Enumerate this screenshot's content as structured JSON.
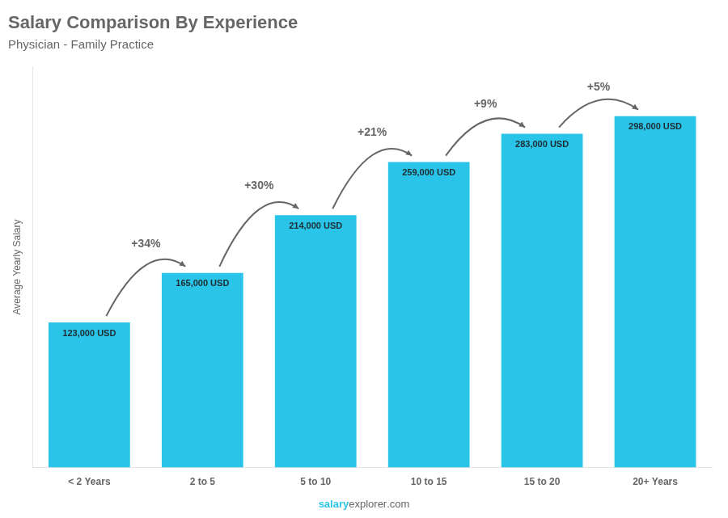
{
  "chart_data": {
    "type": "bar",
    "title": "Salary Comparison By Experience",
    "subtitle": "Physician - Family Practice",
    "categories": [
      "< 2 Years",
      "2 to 5",
      "5 to 10",
      "10 to 15",
      "15 to 20",
      "20+ Years"
    ],
    "values": [
      123000,
      165000,
      214000,
      259000,
      283000,
      298000
    ],
    "value_labels": [
      "123,000 USD",
      "165,000 USD",
      "214,000 USD",
      "259,000 USD",
      "283,000 USD",
      "298,000 USD"
    ],
    "data_labels": true,
    "color": "#29C4E8",
    "ylabel": "Average Yearly Salary",
    "ylim": [
      0,
      340000
    ],
    "tick_labels": "x",
    "grid": false,
    "annotations": [
      "+34%",
      "+30%",
      "+21%",
      "+9%",
      "+5%"
    ],
    "footer": [
      "salary",
      "explorer",
      ".com"
    ]
  }
}
